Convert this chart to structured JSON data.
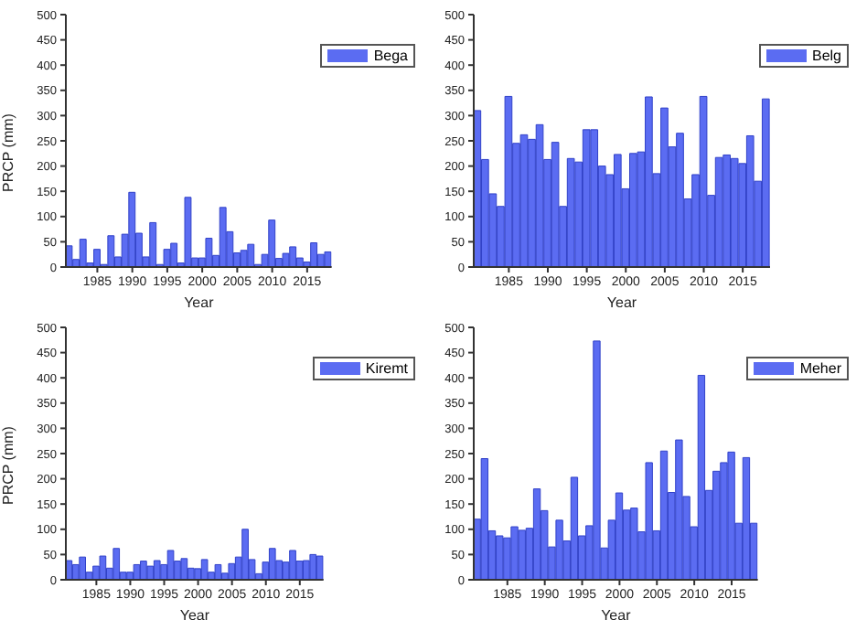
{
  "chart_data": [
    {
      "type": "bar",
      "xlabel": "Year",
      "ylabel": "PRCP (mm)",
      "x": [
        1981,
        1982,
        1983,
        1984,
        1985,
        1986,
        1987,
        1988,
        1989,
        1990,
        1991,
        1992,
        1993,
        1994,
        1995,
        1996,
        1997,
        1998,
        1999,
        2000,
        2001,
        2002,
        2003,
        2004,
        2005,
        2006,
        2007,
        2008,
        2009,
        2010,
        2011,
        2012,
        2013,
        2014,
        2015,
        2016,
        2017,
        2018
      ],
      "xlim": [
        1980.5,
        2018.5
      ],
      "xticks": [
        1985,
        1990,
        1995,
        2000,
        2005,
        2010,
        2015
      ],
      "ylim": [
        0,
        500
      ],
      "yticks": [
        0,
        50,
        100,
        150,
        200,
        250,
        300,
        350,
        400,
        450,
        500
      ],
      "legend": "top right",
      "series": [
        {
          "name": "Bega",
          "color": "#5b6cf2",
          "values": [
            42,
            15,
            55,
            8,
            35,
            5,
            62,
            20,
            65,
            148,
            67,
            20,
            88,
            5,
            35,
            47,
            8,
            138,
            18,
            18,
            57,
            23,
            118,
            70,
            28,
            33,
            45,
            5,
            25,
            93,
            17,
            27,
            40,
            18,
            10,
            48,
            25,
            30
          ]
        }
      ]
    },
    {
      "type": "bar",
      "xlabel": "Year",
      "x": [
        1981,
        1982,
        1983,
        1984,
        1985,
        1986,
        1987,
        1988,
        1989,
        1990,
        1991,
        1992,
        1993,
        1994,
        1995,
        1996,
        1997,
        1998,
        1999,
        2000,
        2001,
        2002,
        2003,
        2004,
        2005,
        2006,
        2007,
        2008,
        2009,
        2010,
        2011,
        2012,
        2013,
        2014,
        2015,
        2016,
        2017,
        2018
      ],
      "xlim": [
        1980.5,
        2018.5
      ],
      "xticks": [
        1985,
        1990,
        1995,
        2000,
        2005,
        2010,
        2015
      ],
      "ylim": [
        0,
        500
      ],
      "yticks": [
        0,
        50,
        100,
        150,
        200,
        250,
        300,
        350,
        400,
        450,
        500
      ],
      "legend": "top right",
      "series": [
        {
          "name": "Belg",
          "color": "#5b6cf2",
          "values": [
            310,
            213,
            145,
            120,
            338,
            245,
            262,
            253,
            282,
            213,
            247,
            120,
            215,
            208,
            272,
            272,
            200,
            183,
            223,
            155,
            225,
            228,
            337,
            185,
            315,
            238,
            265,
            135,
            183,
            338,
            142,
            217,
            222,
            215,
            205,
            260,
            170,
            333
          ]
        }
      ]
    },
    {
      "type": "bar",
      "xlabel": "Year",
      "ylabel": "PRCP (mm)",
      "x": [
        1981,
        1982,
        1983,
        1984,
        1985,
        1986,
        1987,
        1988,
        1989,
        1990,
        1991,
        1992,
        1993,
        1994,
        1995,
        1996,
        1997,
        1998,
        1999,
        2000,
        2001,
        2002,
        2003,
        2004,
        2005,
        2006,
        2007,
        2008,
        2009,
        2010,
        2011,
        2012,
        2013,
        2014,
        2015,
        2016,
        2017,
        2018
      ],
      "xlim": [
        1980.5,
        2018.5
      ],
      "xticks": [
        1985,
        1990,
        1995,
        2000,
        2005,
        2010,
        2015
      ],
      "ylim": [
        0,
        500
      ],
      "yticks": [
        0,
        50,
        100,
        150,
        200,
        250,
        300,
        350,
        400,
        450,
        500
      ],
      "legend": "top right",
      "series": [
        {
          "name": "Kiremt",
          "color": "#5b6cf2",
          "values": [
            38,
            30,
            45,
            15,
            27,
            47,
            23,
            62,
            15,
            15,
            30,
            37,
            27,
            38,
            30,
            58,
            37,
            42,
            23,
            22,
            40,
            15,
            30,
            13,
            32,
            45,
            100,
            40,
            12,
            35,
            62,
            38,
            35,
            58,
            37,
            38,
            50,
            47
          ]
        }
      ]
    },
    {
      "type": "bar",
      "xlabel": "Year",
      "x": [
        1981,
        1982,
        1983,
        1984,
        1985,
        1986,
        1987,
        1988,
        1989,
        1990,
        1991,
        1992,
        1993,
        1994,
        1995,
        1996,
        1997,
        1998,
        1999,
        2000,
        2001,
        2002,
        2003,
        2004,
        2005,
        2006,
        2007,
        2008,
        2009,
        2010,
        2011,
        2012,
        2013,
        2014,
        2015,
        2016,
        2017,
        2018
      ],
      "xlim": [
        1980.5,
        2018.5
      ],
      "xticks": [
        1985,
        1990,
        1995,
        2000,
        2005,
        2010,
        2015
      ],
      "ylim": [
        0,
        500
      ],
      "yticks": [
        0,
        50,
        100,
        150,
        200,
        250,
        300,
        350,
        400,
        450,
        500
      ],
      "legend": "top right",
      "series": [
        {
          "name": "Meher",
          "color": "#5b6cf2",
          "values": [
            120,
            240,
            97,
            87,
            83,
            105,
            98,
            102,
            180,
            137,
            65,
            118,
            77,
            203,
            87,
            107,
            473,
            63,
            118,
            172,
            138,
            142,
            95,
            232,
            97,
            255,
            173,
            277,
            165,
            105,
            405,
            177,
            215,
            232,
            253,
            112,
            242,
            112
          ]
        }
      ]
    }
  ]
}
